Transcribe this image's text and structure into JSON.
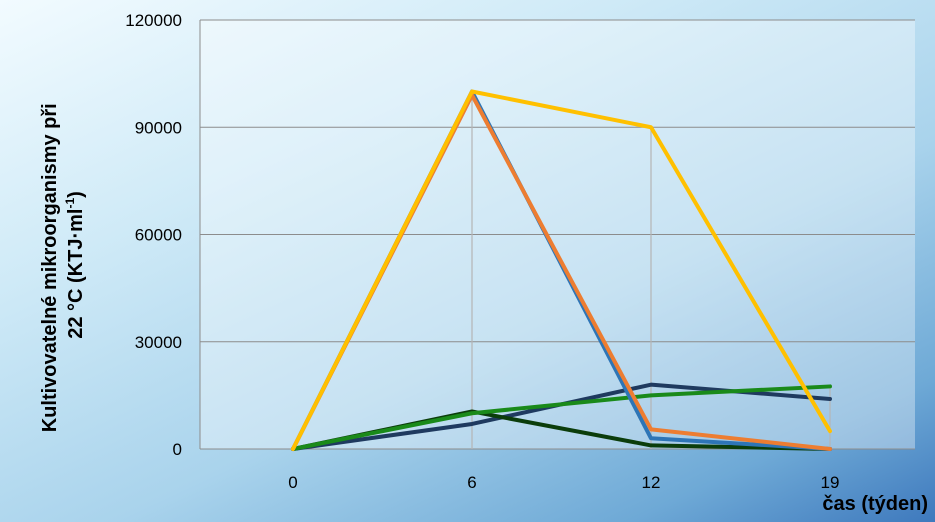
{
  "chart_data": {
    "type": "line",
    "x": [
      0,
      6,
      12,
      19
    ],
    "x_tick_labels": [
      "0",
      "6",
      "12",
      "19"
    ],
    "y_ticks": [
      0,
      30000,
      60000,
      90000,
      120000
    ],
    "y_tick_labels": [
      "0",
      "30000",
      "60000",
      "90000",
      "120000"
    ],
    "ylim": [
      0,
      120000
    ],
    "ylabel_line1": "Kultivovatelné mikroorganismy při",
    "ylabel_line2_prefix": "22 °C (KTJ·ml",
    "ylabel_line2_sup": "-1",
    "ylabel_line2_suffix": ")",
    "xlabel": "čas (týden)",
    "grid": true,
    "legend": "none",
    "series": [
      {
        "color": "#1f3a5f",
        "values": [
          0,
          7000,
          18000,
          14000
        ]
      },
      {
        "color": "#0b3d0b",
        "values": [
          0,
          10500,
          1000,
          0
        ]
      },
      {
        "color": "#1a8a1a",
        "values": [
          0,
          10000,
          15000,
          17500
        ]
      },
      {
        "color": "#2e75b6",
        "values": [
          0,
          100000,
          3000,
          0
        ]
      },
      {
        "color": "#ed7d31",
        "values": [
          0,
          99000,
          5500,
          0
        ]
      },
      {
        "color": "#ffc000",
        "values": [
          0,
          100000,
          90000,
          5000
        ]
      }
    ]
  }
}
